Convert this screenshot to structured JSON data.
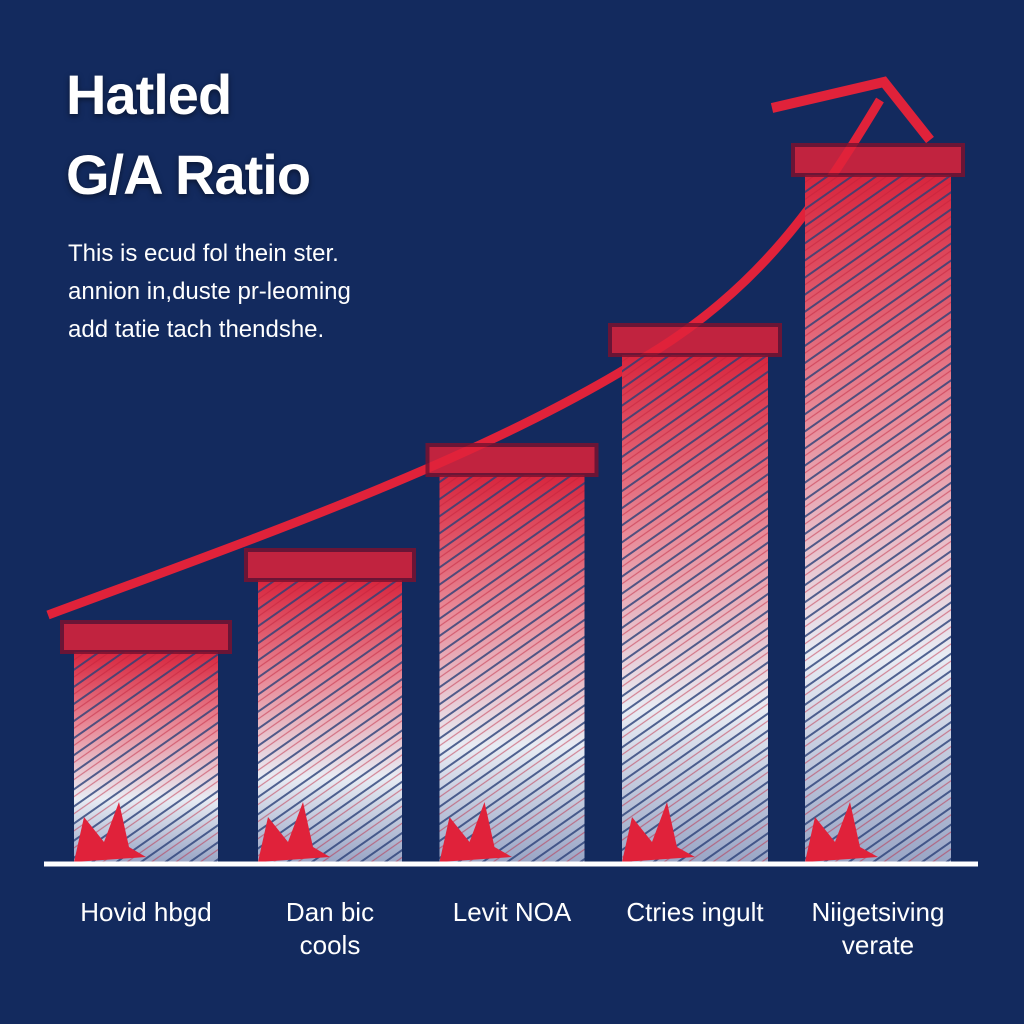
{
  "chart_data": {
    "type": "bar",
    "title": [
      "Hatled",
      "G/A Ratio"
    ],
    "subtitle": [
      "This is ecud fol thein ster.",
      "annion in,duste pr-leoming",
      "add tatie tach thendshe."
    ],
    "categories": [
      "Hovid hbgd",
      "Dan bic cools",
      "Levit NOA",
      "Ctries ingult",
      "Niigetsiving verate"
    ],
    "values": [
      240,
      312,
      417,
      537,
      717
    ],
    "ylim": [
      0,
      780
    ],
    "color": "#e0223a"
  }
}
